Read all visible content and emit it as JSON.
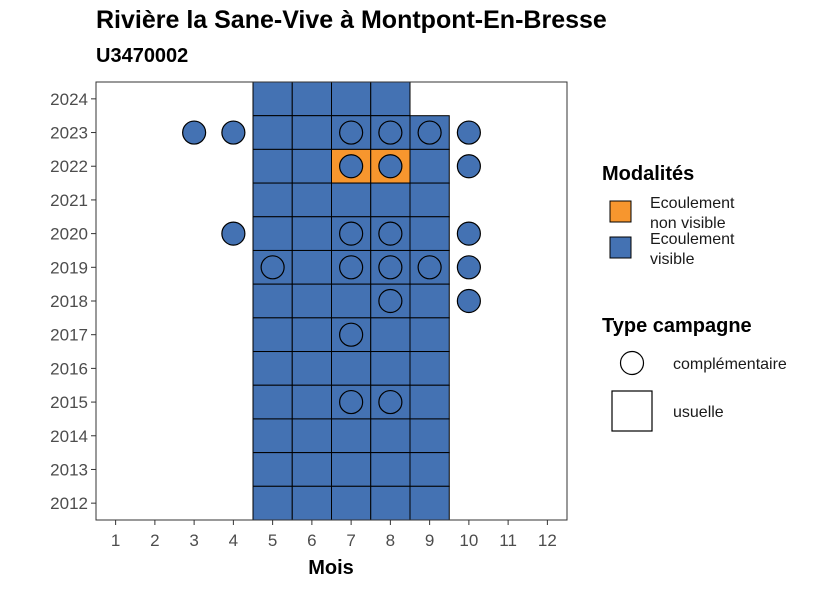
{
  "chart_data": {
    "type": "heatmap",
    "title": "Rivière la Sane-Vive à Montpont-En-Bresse",
    "subtitle": "U3470002",
    "xlabel": "Mois",
    "ylabel": "",
    "x_ticks": [
      1,
      2,
      3,
      4,
      5,
      6,
      7,
      8,
      9,
      10,
      11,
      12
    ],
    "y_ticks": [
      2012,
      2013,
      2014,
      2015,
      2016,
      2017,
      2018,
      2019,
      2020,
      2021,
      2022,
      2023,
      2024
    ],
    "xlim": [
      0.5,
      12.5
    ],
    "ylim": [
      2011.5,
      2024.5
    ],
    "colors": {
      "Ecoulement non visible": "#f7962e",
      "Ecoulement visible": "#4472b3"
    },
    "usuelle_cells": [
      {
        "year": 2024,
        "months": [
          5,
          6,
          7,
          8
        ],
        "modalite": "Ecoulement visible"
      },
      {
        "year": 2023,
        "months": [
          5,
          6,
          7,
          8,
          9
        ],
        "modalite": "Ecoulement visible"
      },
      {
        "year": 2022,
        "months": [
          5,
          6,
          9
        ],
        "modalite": "Ecoulement visible"
      },
      {
        "year": 2022,
        "months": [
          7,
          8
        ],
        "modalite": "Ecoulement non visible"
      },
      {
        "year": 2021,
        "months": [
          5,
          6,
          7,
          8,
          9
        ],
        "modalite": "Ecoulement visible"
      },
      {
        "year": 2020,
        "months": [
          5,
          6,
          7,
          8,
          9
        ],
        "modalite": "Ecoulement visible"
      },
      {
        "year": 2019,
        "months": [
          5,
          6,
          7,
          8,
          9
        ],
        "modalite": "Ecoulement visible"
      },
      {
        "year": 2018,
        "months": [
          5,
          6,
          7,
          8,
          9
        ],
        "modalite": "Ecoulement visible"
      },
      {
        "year": 2017,
        "months": [
          5,
          6,
          7,
          8,
          9
        ],
        "modalite": "Ecoulement visible"
      },
      {
        "year": 2016,
        "months": [
          5,
          6,
          7,
          8,
          9
        ],
        "modalite": "Ecoulement visible"
      },
      {
        "year": 2015,
        "months": [
          5,
          6,
          7,
          8,
          9
        ],
        "modalite": "Ecoulement visible"
      },
      {
        "year": 2014,
        "months": [
          5,
          6,
          7,
          8,
          9
        ],
        "modalite": "Ecoulement visible"
      },
      {
        "year": 2013,
        "months": [
          5,
          6,
          7,
          8,
          9
        ],
        "modalite": "Ecoulement visible"
      },
      {
        "year": 2012,
        "months": [
          5,
          6,
          7,
          8,
          9
        ],
        "modalite": "Ecoulement visible"
      }
    ],
    "complementaire_points": [
      {
        "year": 2023,
        "months": [
          3,
          4,
          7,
          8,
          9,
          10
        ],
        "modalite": "Ecoulement visible"
      },
      {
        "year": 2022,
        "months": [
          7,
          8,
          10
        ],
        "modalite": "Ecoulement visible"
      },
      {
        "year": 2020,
        "months": [
          4,
          7,
          8,
          10
        ],
        "modalite": "Ecoulement visible"
      },
      {
        "year": 2019,
        "months": [
          5,
          7,
          8,
          9,
          10
        ],
        "modalite": "Ecoulement visible"
      },
      {
        "year": 2018,
        "months": [
          8,
          10
        ],
        "modalite": "Ecoulement visible"
      },
      {
        "year": 2017,
        "months": [
          7
        ],
        "modalite": "Ecoulement visible"
      },
      {
        "year": 2015,
        "months": [
          7,
          8
        ],
        "modalite": "Ecoulement visible"
      }
    ],
    "legend": {
      "modalites_title": "Modalités",
      "modalites": [
        {
          "key": "Ecoulement non visible",
          "line1": "Ecoulement",
          "line2": "non visible"
        },
        {
          "key": "Ecoulement visible",
          "line1": "Ecoulement",
          "line2": "visible"
        }
      ],
      "campagne_title": "Type campagne",
      "campagnes": [
        "complémentaire",
        "usuelle"
      ],
      "placement": "right"
    },
    "grid": false
  }
}
